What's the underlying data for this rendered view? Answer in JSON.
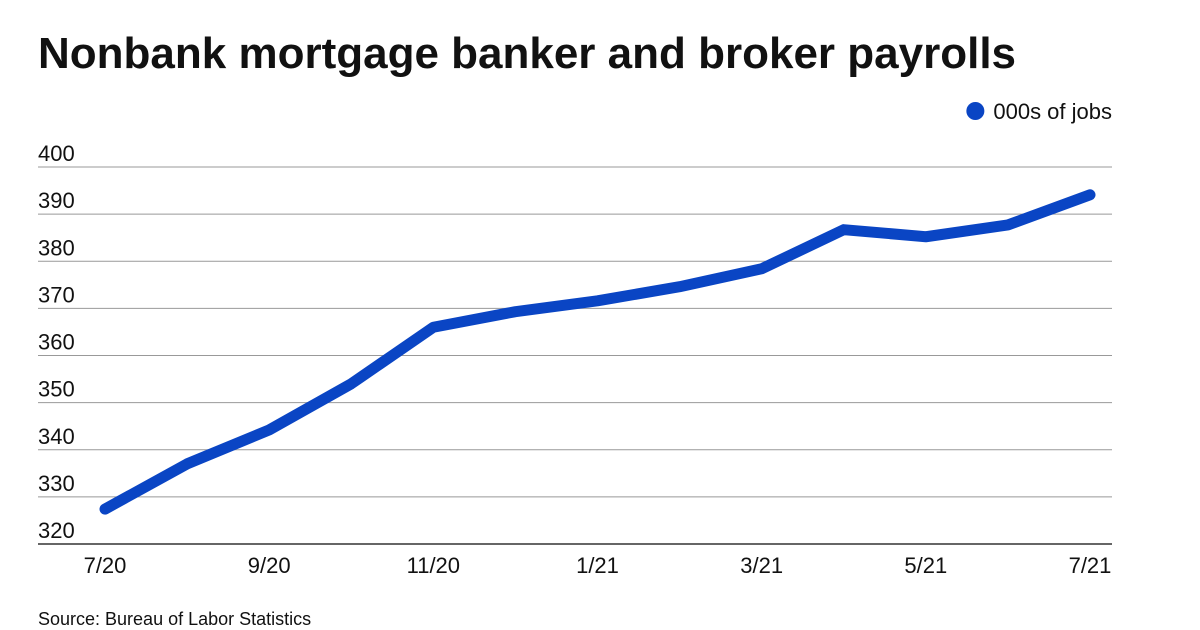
{
  "chart_data": {
    "type": "line",
    "title": "Nonbank mortgage banker and broker payrolls",
    "categories": [
      "7/20",
      null,
      "9/20",
      null,
      "11/20",
      null,
      "1/21",
      null,
      "3/21",
      null,
      "5/21",
      null,
      "7/21"
    ],
    "series": [
      {
        "name": "000s of jobs",
        "color": "#0a45c4",
        "values": [
          327.4,
          337,
          344.2,
          354,
          366,
          369.3,
          371.6,
          374.6,
          378.4,
          386.7,
          385.2,
          387.7,
          394.1
        ]
      }
    ],
    "ylim": [
      320,
      400
    ],
    "yticks": [
      320,
      330,
      340,
      350,
      360,
      370,
      380,
      390,
      400
    ],
    "grid": true,
    "legend": "top-right",
    "source": "Source: Bureau of Labor Statistics"
  }
}
